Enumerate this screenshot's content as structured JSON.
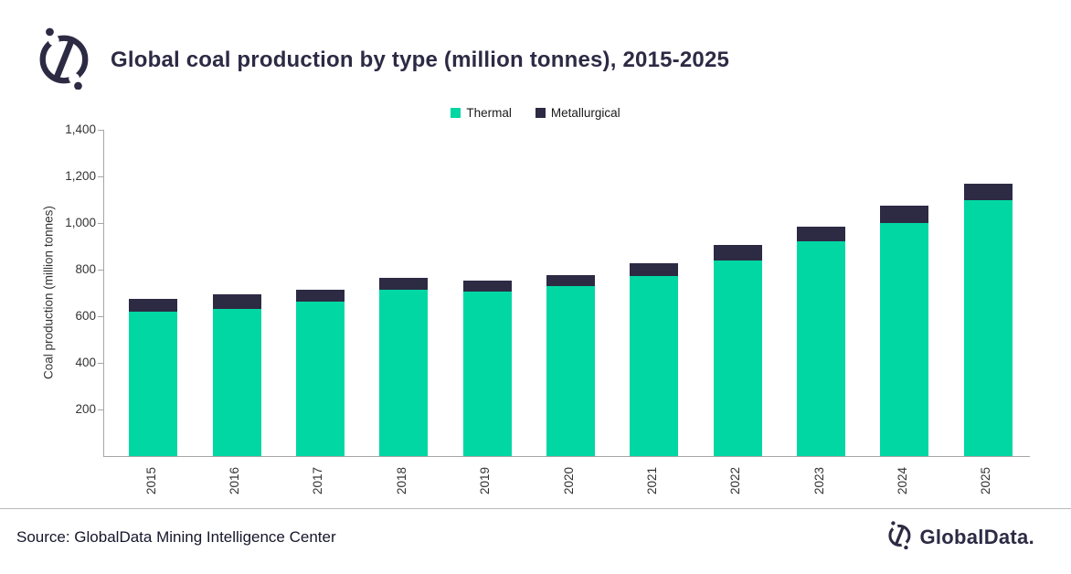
{
  "header": {
    "title": "Global coal production by type (million tonnes), 2015-2025"
  },
  "legend": [
    {
      "label": "Thermal",
      "color": "#00D7A3"
    },
    {
      "label": "Metallurgical",
      "color": "#2D2A44"
    }
  ],
  "chart_data": {
    "type": "bar",
    "stacked": true,
    "title": "Global coal production by type (million tonnes), 2015-2025",
    "xlabel": "",
    "ylabel": "Coal production (million tonnes)",
    "ylim": [
      0,
      1400
    ],
    "yticks": [
      200,
      400,
      600,
      800,
      1000,
      1200,
      1400
    ],
    "ytick_labels": [
      "200",
      "400",
      "600",
      "800",
      "1,000",
      "1,200",
      "1,400"
    ],
    "grid": false,
    "legend_position": "top",
    "categories": [
      "2015",
      "2016",
      "2017",
      "2018",
      "2019",
      "2020",
      "2021",
      "2022",
      "2023",
      "2024",
      "2025"
    ],
    "series": [
      {
        "name": "Thermal",
        "color": "#00D7A3",
        "values": [
          618,
          630,
          664,
          715,
          707,
          731,
          774,
          838,
          923,
          1001,
          1097
        ]
      },
      {
        "name": "Metallurgical",
        "color": "#2D2A44",
        "values": [
          55,
          66,
          50,
          50,
          47,
          47,
          55,
          68,
          63,
          72,
          73
        ]
      }
    ],
    "totals": [
      673,
      696,
      714,
      765,
      754,
      778,
      829,
      906,
      986,
      1073,
      1170
    ]
  },
  "footer": {
    "source": "Source: GlobalData Mining Intelligence Center",
    "brand": "GlobalData."
  }
}
